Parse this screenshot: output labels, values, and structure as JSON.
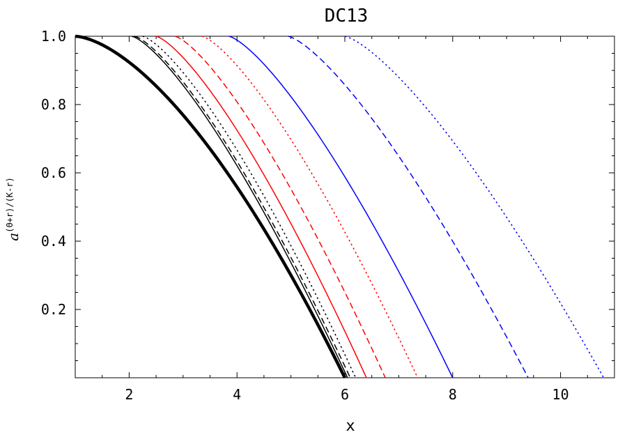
{
  "chart_data": {
    "type": "line",
    "title": "DC13",
    "xlabel": "x",
    "ylabel_base": "a",
    "ylabel_superscript": "(Θ+r)/(K-r)",
    "xlim": [
      1,
      11
    ],
    "ylim": [
      0,
      1
    ],
    "x_ticks": [
      2,
      4,
      6,
      8,
      10
    ],
    "x_tick_labels": [
      "2",
      "4",
      "6",
      "8",
      "10"
    ],
    "y_ticks": [
      0.2,
      0.4,
      0.6,
      0.8,
      1.0
    ],
    "y_tick_labels": [
      "0.2",
      "0.4",
      "0.6",
      "0.8",
      "1.0"
    ],
    "grid": false,
    "series": [
      {
        "color": "#000000",
        "style": "solid",
        "width": "thick",
        "x_start": 1.0,
        "x_end": 6.0
      },
      {
        "color": "#000000",
        "style": "solid",
        "width": "thin",
        "x_start": 2.05,
        "x_end": 6.05
      },
      {
        "color": "#000000",
        "style": "dashed",
        "width": "thin",
        "x_start": 2.1,
        "x_end": 6.1
      },
      {
        "color": "#000000",
        "style": "dotted",
        "width": "thin",
        "x_start": 2.25,
        "x_end": 6.2
      },
      {
        "color": "#ff0000",
        "style": "solid",
        "width": "thin",
        "x_start": 2.5,
        "x_end": 6.4
      },
      {
        "color": "#ff0000",
        "style": "dashed",
        "width": "thin",
        "x_start": 2.85,
        "x_end": 6.75
      },
      {
        "color": "#ff0000",
        "style": "dotted",
        "width": "thin",
        "x_start": 3.35,
        "x_end": 7.35
      },
      {
        "color": "#0000ff",
        "style": "solid",
        "width": "thin",
        "x_start": 3.85,
        "x_end": 8.0
      },
      {
        "color": "#0000ff",
        "style": "dashed",
        "width": "thin",
        "x_start": 4.95,
        "x_end": 9.4
      },
      {
        "color": "#0000ff",
        "style": "dotted",
        "width": "thin",
        "x_start": 6.0,
        "x_end": 10.8
      }
    ]
  }
}
